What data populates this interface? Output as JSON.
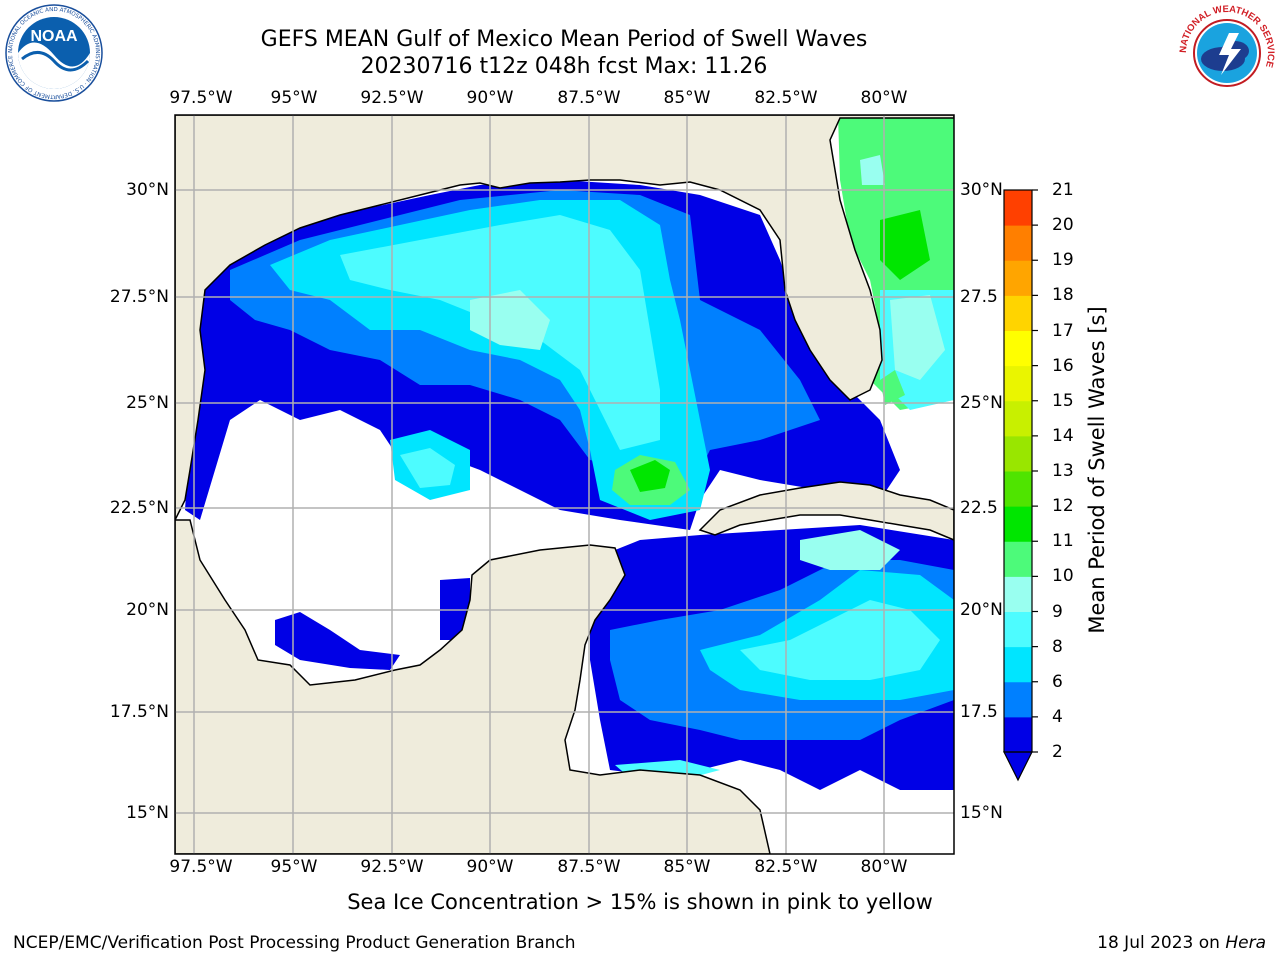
{
  "title": {
    "line1": "GEFS MEAN Gulf of Mexico Mean Period of Swell Waves",
    "line2": "20230716 t12z 048h fcst   Max: 11.26"
  },
  "map": {
    "lon_labels_top": [
      "97.5°W",
      "95°W",
      "92.5°W",
      "90°W",
      "87.5°W",
      "85°W",
      "82.5°W",
      "80°W"
    ],
    "lon_labels_bottom": [
      "97.5°W",
      "95°W",
      "92.5°W",
      "90°W",
      "87.5°W",
      "85°W",
      "82.5°W",
      "80°W"
    ],
    "lat_labels_left": [
      "30°N",
      "27.5°N",
      "25°N",
      "22.5°N",
      "20°N",
      "17.5°N",
      "15°N"
    ],
    "lat_labels_right": [
      "30°N",
      "27.5",
      "25°N",
      "22.5",
      "20°N",
      "17.5",
      "15°N"
    ],
    "lon_range": [
      -98,
      -78.3
    ],
    "lat_range": [
      14,
      31.8
    ],
    "colors": {
      "land": "#efecdc",
      "no_data": "#ffffff",
      "grid": "#b0b0b0"
    }
  },
  "colorbar": {
    "label": "Mean Period of Swell Waves [s]",
    "ticks": [
      "2",
      "4",
      "6",
      "8",
      "9",
      "10",
      "11",
      "12",
      "13",
      "14",
      "15",
      "16",
      "17",
      "18",
      "19",
      "20",
      "21"
    ],
    "colors": [
      "#0000e6",
      "#0080ff",
      "#00e5ff",
      "#4dfcff",
      "#99fff0",
      "#4dfa7a",
      "#00e600",
      "#4fe400",
      "#99e600",
      "#c8f000",
      "#eaf500",
      "#ffff00",
      "#ffd400",
      "#ffa500",
      "#ff7f00",
      "#ff4000",
      "#ff0000"
    ],
    "extend": "min"
  },
  "note": "Sea Ice Concentration > 15% is shown in pink to yellow",
  "footer": {
    "left": "NCEP/EMC/Verification Post Processing Product Generation Branch",
    "right_date": "18 Jul 2023 on ",
    "right_host": "Hera"
  },
  "logos": {
    "noaa": {
      "text": "NOAA",
      "ring": "NATIONAL OCEANIC AND ATMOSPHERIC ADMINISTRATION · U.S. DEPARTMENT OF COMMERCE"
    },
    "nws": {
      "ring": "NATIONAL WEATHER SERVICE"
    }
  }
}
